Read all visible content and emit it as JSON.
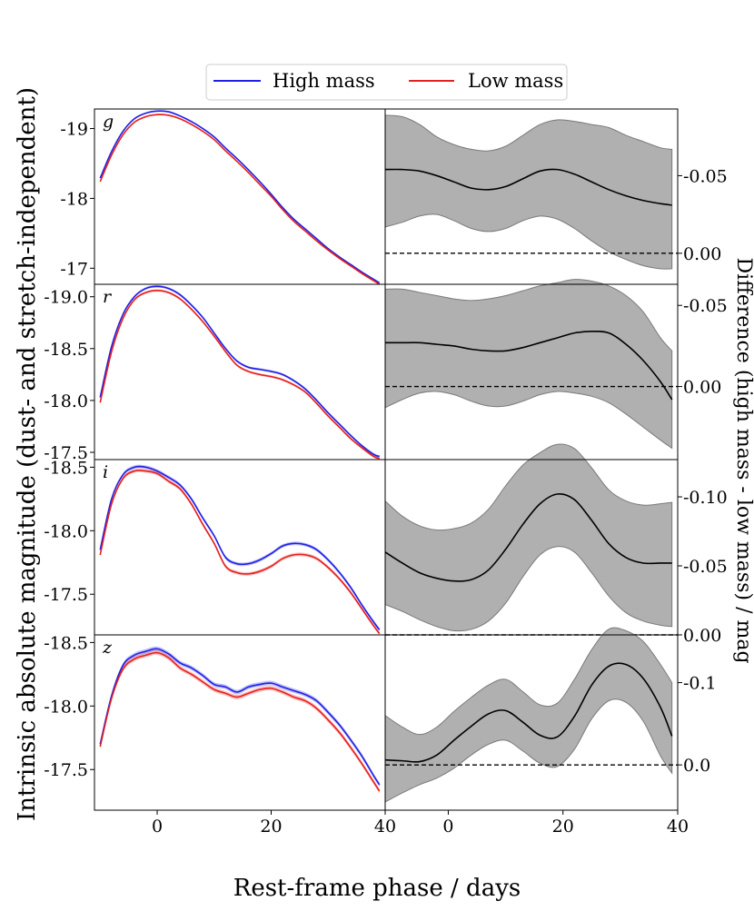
{
  "chart_data": {
    "type": "line",
    "legend": {
      "placement": "top-center",
      "entries": [
        {
          "label": "High mass",
          "color": "#1f1fe6"
        },
        {
          "label": "Low mass",
          "color": "#e61f1f"
        }
      ]
    },
    "xlabel": "Rest-frame phase / days",
    "ylabel_left": "Intrinsic absolute magnitude (dust- and stretch-independent)",
    "ylabel_right": "Difference (high mass - low mass) / mag",
    "xlim": [
      -11,
      40
    ],
    "xticks": [
      0,
      20,
      40
    ],
    "xtick_labels": [
      "0",
      "20",
      "40"
    ],
    "panels": [
      {
        "band": "g",
        "left": {
          "ylim": [
            -16.77,
            -19.28
          ],
          "yticks": [
            -19,
            -18,
            -17
          ],
          "ytick_labels": [
            "-19",
            "-18",
            "-17"
          ],
          "x": [
            -10,
            -8,
            -6,
            -4,
            -2,
            0,
            2,
            4,
            6,
            8,
            10,
            12,
            14,
            16,
            18,
            20,
            22,
            24,
            26,
            28,
            30,
            32,
            34,
            36,
            38,
            39
          ],
          "high_mass": [
            -18.29,
            -18.67,
            -18.96,
            -19.14,
            -19.22,
            -19.25,
            -19.24,
            -19.18,
            -19.1,
            -19.0,
            -18.88,
            -18.72,
            -18.57,
            -18.41,
            -18.24,
            -18.06,
            -17.87,
            -17.7,
            -17.56,
            -17.42,
            -17.28,
            -17.16,
            -17.05,
            -16.94,
            -16.84,
            -16.79
          ],
          "low_mass": [
            -18.24,
            -18.62,
            -18.91,
            -19.09,
            -19.17,
            -19.2,
            -19.19,
            -19.14,
            -19.06,
            -18.96,
            -18.84,
            -18.68,
            -18.53,
            -18.37,
            -18.2,
            -18.03,
            -17.84,
            -17.67,
            -17.53,
            -17.39,
            -17.26,
            -17.14,
            -17.03,
            -16.92,
            -16.82,
            -16.77
          ],
          "band_halfwidth": 0.012
        },
        "right": {
          "ylim": [
            0.02,
            -0.093
          ],
          "yticks": [
            -0.05,
            0.0
          ],
          "ytick_labels": [
            "-0.05",
            "0.00"
          ],
          "zero_line": 0.0,
          "x": [
            -11,
            -8,
            -5,
            -2,
            1,
            4,
            7,
            10,
            13,
            16,
            19,
            22,
            25,
            28,
            31,
            34,
            37,
            39
          ],
          "mean": [
            -0.054,
            -0.054,
            -0.053,
            -0.05,
            -0.046,
            -0.042,
            -0.041,
            -0.043,
            -0.048,
            -0.053,
            -0.054,
            -0.051,
            -0.046,
            -0.041,
            -0.037,
            -0.034,
            -0.032,
            -0.031
          ],
          "lower": [
            -0.017,
            -0.02,
            -0.024,
            -0.025,
            -0.021,
            -0.016,
            -0.014,
            -0.016,
            -0.021,
            -0.024,
            -0.022,
            -0.016,
            -0.008,
            -0.001,
            0.004,
            0.008,
            0.01,
            0.01
          ],
          "upper": [
            -0.089,
            -0.088,
            -0.083,
            -0.075,
            -0.07,
            -0.067,
            -0.066,
            -0.069,
            -0.076,
            -0.083,
            -0.086,
            -0.085,
            -0.083,
            -0.081,
            -0.076,
            -0.072,
            -0.068,
            -0.067
          ]
        }
      },
      {
        "band": "r",
        "left": {
          "ylim": [
            -17.43,
            -19.12
          ],
          "yticks": [
            -19.0,
            -18.5,
            -18.0,
            -17.5
          ],
          "ytick_labels": [
            "-19.0",
            "-18.5",
            "-18.0",
            "-17.5"
          ],
          "x": [
            -10,
            -8,
            -6,
            -4,
            -2,
            0,
            2,
            4,
            6,
            8,
            10,
            12,
            14,
            16,
            18,
            20,
            22,
            24,
            26,
            28,
            30,
            32,
            34,
            36,
            38,
            39
          ],
          "high_mass": [
            -18.03,
            -18.52,
            -18.83,
            -19.0,
            -19.08,
            -19.1,
            -19.08,
            -19.02,
            -18.92,
            -18.8,
            -18.65,
            -18.5,
            -18.38,
            -18.32,
            -18.3,
            -18.28,
            -18.25,
            -18.19,
            -18.11,
            -18.0,
            -17.88,
            -17.77,
            -17.66,
            -17.56,
            -17.48,
            -17.46
          ],
          "low_mass": [
            -17.98,
            -18.47,
            -18.79,
            -18.97,
            -19.04,
            -19.06,
            -19.04,
            -18.98,
            -18.88,
            -18.76,
            -18.62,
            -18.47,
            -18.34,
            -18.28,
            -18.25,
            -18.23,
            -18.2,
            -18.15,
            -18.08,
            -17.97,
            -17.85,
            -17.74,
            -17.63,
            -17.54,
            -17.46,
            -17.44
          ],
          "band_halfwidth": 0.012
        },
        "right": {
          "ylim": [
            0.045,
            -0.063
          ],
          "yticks": [
            -0.05,
            0.0
          ],
          "ytick_labels": [
            "-0.05",
            "0.00"
          ],
          "zero_line": 0.0,
          "x": [
            -11,
            -8,
            -5,
            -2,
            1,
            4,
            7,
            10,
            13,
            16,
            19,
            22,
            25,
            28,
            31,
            34,
            37,
            39
          ],
          "mean": [
            -0.027,
            -0.027,
            -0.027,
            -0.026,
            -0.025,
            -0.023,
            -0.022,
            -0.022,
            -0.024,
            -0.027,
            -0.03,
            -0.033,
            -0.034,
            -0.033,
            -0.026,
            -0.016,
            -0.003,
            0.008
          ],
          "lower": [
            0.013,
            0.008,
            0.004,
            0.003,
            0.005,
            0.009,
            0.012,
            0.012,
            0.009,
            0.005,
            0.003,
            0.004,
            0.006,
            0.01,
            0.017,
            0.025,
            0.033,
            0.038
          ],
          "upper": [
            -0.06,
            -0.06,
            -0.058,
            -0.056,
            -0.054,
            -0.053,
            -0.054,
            -0.056,
            -0.059,
            -0.062,
            -0.064,
            -0.066,
            -0.065,
            -0.062,
            -0.056,
            -0.046,
            -0.03,
            -0.022
          ]
        }
      },
      {
        "band": "i",
        "left": {
          "ylim": [
            -17.18,
            -18.56
          ],
          "yticks": [
            -18.5,
            -18.0,
            -17.5
          ],
          "ytick_labels": [
            "-18.5",
            "-18.0",
            "-17.5"
          ],
          "x": [
            -10,
            -8,
            -6,
            -4,
            -2,
            0,
            2,
            4,
            6,
            8,
            10,
            12,
            14,
            16,
            18,
            20,
            22,
            24,
            26,
            28,
            30,
            32,
            34,
            36,
            38,
            39
          ],
          "high_mass": [
            -17.85,
            -18.25,
            -18.44,
            -18.5,
            -18.5,
            -18.47,
            -18.42,
            -18.36,
            -18.25,
            -18.1,
            -17.96,
            -17.79,
            -17.74,
            -17.74,
            -17.77,
            -17.82,
            -17.88,
            -17.9,
            -17.89,
            -17.85,
            -17.77,
            -17.67,
            -17.55,
            -17.41,
            -17.28,
            -17.22
          ],
          "low_mass": [
            -17.81,
            -18.21,
            -18.41,
            -18.47,
            -18.47,
            -18.45,
            -18.39,
            -18.33,
            -18.21,
            -18.05,
            -17.9,
            -17.72,
            -17.67,
            -17.66,
            -17.68,
            -17.72,
            -17.78,
            -17.81,
            -17.81,
            -17.78,
            -17.71,
            -17.62,
            -17.51,
            -17.38,
            -17.25,
            -17.19
          ],
          "band_halfwidth": 0.014
        },
        "right": {
          "ylim": [
            0.0,
            -0.127
          ],
          "yticks": [
            -0.1,
            -0.05,
            0.0
          ],
          "ytick_labels": [
            "-0.10",
            "-0.05",
            "0.00"
          ],
          "zero_line": 0.0,
          "x": [
            -11,
            -8,
            -5,
            -2,
            1,
            4,
            7,
            10,
            13,
            16,
            19,
            22,
            25,
            28,
            31,
            34,
            37,
            39
          ],
          "mean": [
            -0.06,
            -0.052,
            -0.045,
            -0.041,
            -0.039,
            -0.04,
            -0.047,
            -0.062,
            -0.08,
            -0.095,
            -0.102,
            -0.098,
            -0.083,
            -0.066,
            -0.056,
            -0.052,
            -0.052,
            -0.052
          ],
          "lower": [
            -0.022,
            -0.017,
            -0.011,
            -0.006,
            -0.003,
            -0.004,
            -0.01,
            -0.023,
            -0.042,
            -0.058,
            -0.064,
            -0.06,
            -0.045,
            -0.028,
            -0.016,
            -0.01,
            -0.007,
            -0.006
          ],
          "upper": [
            -0.097,
            -0.086,
            -0.079,
            -0.076,
            -0.077,
            -0.081,
            -0.091,
            -0.108,
            -0.123,
            -0.132,
            -0.138,
            -0.135,
            -0.121,
            -0.105,
            -0.097,
            -0.094,
            -0.095,
            -0.096
          ]
        }
      },
      {
        "band": "z",
        "left": {
          "ylim": [
            -17.18,
            -18.56
          ],
          "yticks": [
            -18.5,
            -18.0,
            -17.5
          ],
          "ytick_labels": [
            "-18.5",
            "-18.0",
            "-17.5"
          ],
          "x": [
            -10,
            -8,
            -6,
            -4,
            -2,
            0,
            2,
            4,
            6,
            8,
            10,
            12,
            14,
            16,
            18,
            20,
            22,
            24,
            26,
            28,
            30,
            32,
            34,
            36,
            38,
            39
          ],
          "high_mass": [
            -17.7,
            -18.08,
            -18.32,
            -18.4,
            -18.43,
            -18.45,
            -18.41,
            -18.34,
            -18.3,
            -18.24,
            -18.17,
            -18.15,
            -18.11,
            -18.15,
            -18.17,
            -18.18,
            -18.15,
            -18.12,
            -18.09,
            -18.04,
            -17.95,
            -17.85,
            -17.73,
            -17.6,
            -17.45,
            -17.38
          ],
          "low_mass": [
            -17.68,
            -18.06,
            -18.29,
            -18.37,
            -18.4,
            -18.42,
            -18.38,
            -18.3,
            -18.25,
            -18.19,
            -18.13,
            -18.1,
            -18.07,
            -18.1,
            -18.13,
            -18.14,
            -18.11,
            -18.07,
            -18.04,
            -17.98,
            -17.89,
            -17.79,
            -17.67,
            -17.54,
            -17.4,
            -17.33
          ],
          "band_halfwidth": 0.018
        },
        "right": {
          "ylim": [
            0.055,
            -0.158
          ],
          "yticks": [
            -0.1,
            0.0
          ],
          "ytick_labels": [
            "-0.1",
            "0.0"
          ],
          "zero_line": 0.0,
          "x": [
            -11,
            -8,
            -5,
            -2,
            1,
            4,
            7,
            10,
            13,
            16,
            19,
            22,
            25,
            28,
            31,
            34,
            37,
            39
          ],
          "mean": [
            -0.006,
            -0.005,
            -0.004,
            -0.012,
            -0.03,
            -0.047,
            -0.062,
            -0.066,
            -0.052,
            -0.036,
            -0.034,
            -0.059,
            -0.097,
            -0.12,
            -0.122,
            -0.105,
            -0.07,
            -0.035
          ],
          "lower": [
            0.045,
            0.034,
            0.024,
            0.016,
            0.004,
            -0.012,
            -0.025,
            -0.03,
            -0.017,
            -0.002,
            0.002,
            -0.019,
            -0.056,
            -0.078,
            -0.076,
            -0.053,
            -0.011,
            0.01
          ],
          "upper": [
            -0.06,
            -0.046,
            -0.037,
            -0.046,
            -0.065,
            -0.082,
            -0.097,
            -0.104,
            -0.089,
            -0.073,
            -0.075,
            -0.104,
            -0.14,
            -0.165,
            -0.163,
            -0.15,
            -0.122,
            -0.1
          ]
        }
      }
    ],
    "colors": {
      "high_mass": "#1f1fe6",
      "low_mass": "#e61f1f",
      "difference_line": "#000000",
      "difference_band": "#b0b0b0"
    }
  }
}
